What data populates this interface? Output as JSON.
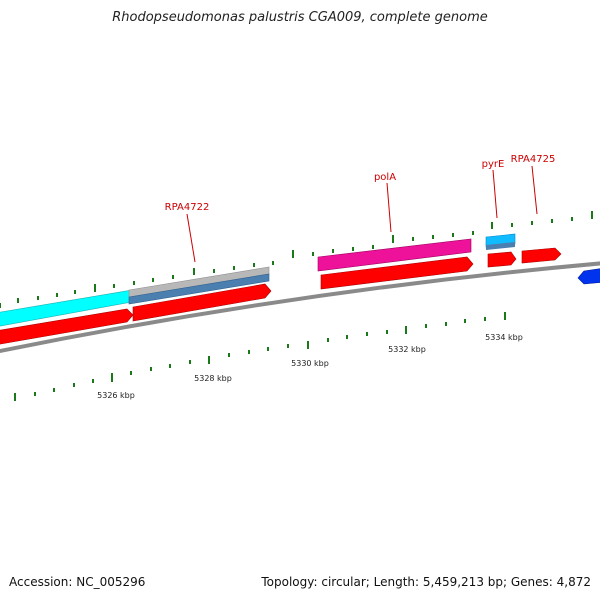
{
  "title": "Rhodopseudomonas palustris CGA009, complete genome",
  "footer": {
    "accession": "Accession: NC_005296",
    "summary": "Topology: circular; Length: 5,459,213 bp; Genes: 4,872"
  },
  "colors": {
    "backbone": "#8a8a8a",
    "tick": "#1a7a1a",
    "label": "#cc0000",
    "forward_cds": "#ff0000",
    "cyan_feature": "#00ffff",
    "gray_feature": "#b8b8b8",
    "steel_feature": "#4a7fb0",
    "magenta_feature": "#ee1199",
    "blue_feature": "#0033ee"
  },
  "kbp_labels": [
    "5326 kbp",
    "5328 kbp",
    "5330 kbp",
    "5332 kbp",
    "5334 kbp"
  ],
  "gene_labels": [
    "RPA4722",
    "polA",
    "pyrE",
    "RPA4725"
  ]
}
